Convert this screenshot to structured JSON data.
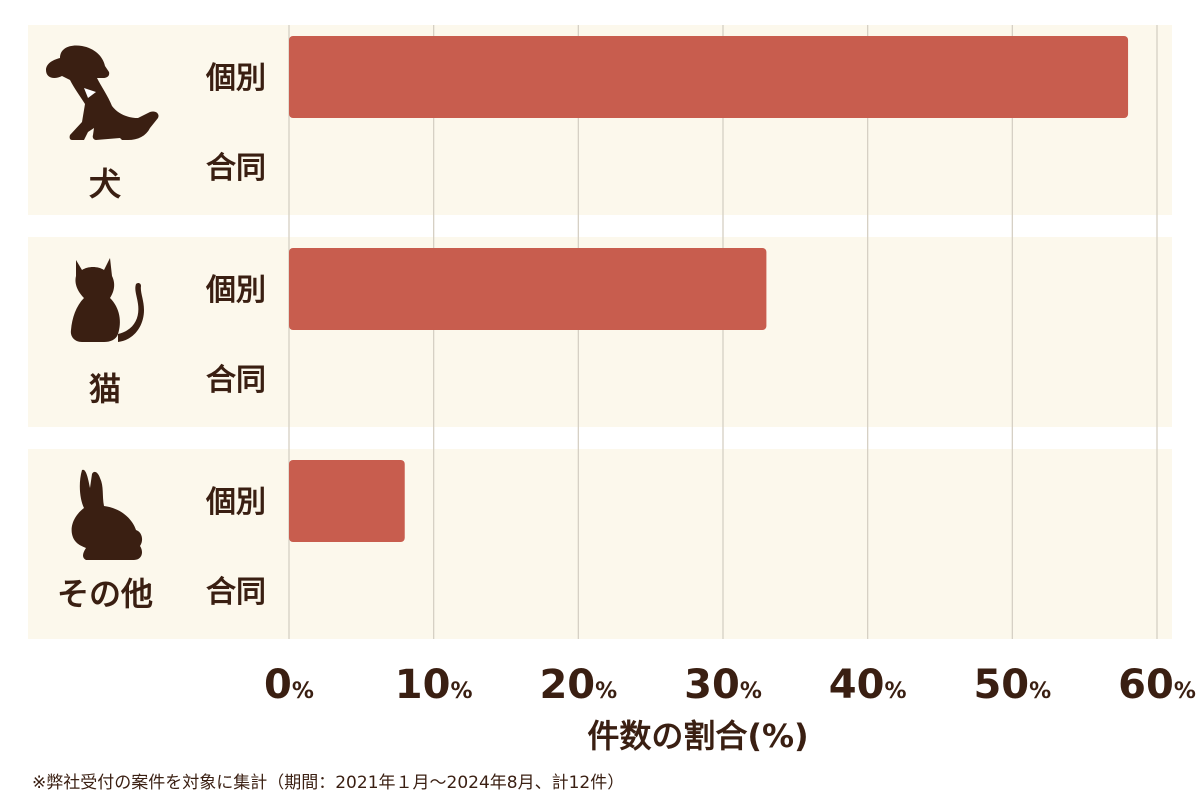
{
  "chart_data": {
    "type": "bar",
    "orientation": "horizontal",
    "groups": [
      {
        "name": "犬",
        "icon": "dog-icon",
        "categories": [
          "個別",
          "合同"
        ],
        "values": [
          58,
          0
        ]
      },
      {
        "name": "猫",
        "icon": "cat-icon",
        "categories": [
          "個別",
          "合同"
        ],
        "values": [
          33,
          0
        ]
      },
      {
        "name": "その他",
        "icon": "rabbit-icon",
        "categories": [
          "個別",
          "合同"
        ],
        "values": [
          8,
          0
        ]
      }
    ],
    "xlim": [
      0,
      60
    ],
    "ticks": [
      0,
      10,
      20,
      30,
      40,
      50,
      60
    ],
    "tick_unit": "%",
    "xlabel": "件数の割合(%)",
    "grid": true,
    "colors": {
      "bar": "#c85d4e",
      "panel": "#fcf8ec",
      "text": "#3a1f12",
      "grid": "#d5d0c4"
    }
  },
  "footnote": "※弊社受付の案件を対象に集計（期間：2021年１月〜2024年8月、計12件）"
}
